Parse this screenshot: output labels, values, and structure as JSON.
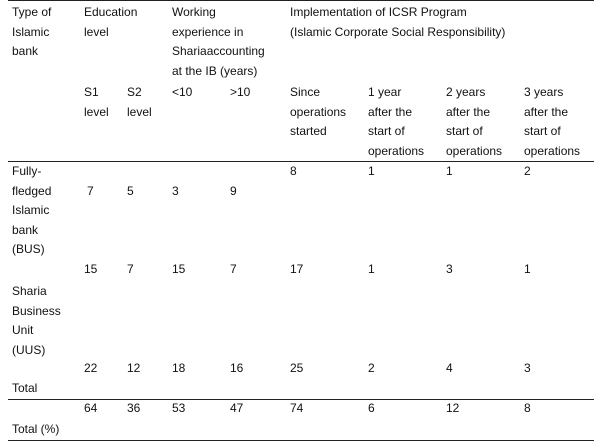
{
  "header": {
    "type_of_bank": [
      "Type of",
      "Islamic",
      "bank"
    ],
    "education_level": [
      "Education",
      "level"
    ],
    "working_experience": [
      "Working",
      "experience in",
      "Shariaaccounting",
      "at the IB (years)"
    ],
    "implementation": [
      "Implementation of ICSR Program",
      "(Islamic Corporate Social Responsibility)"
    ]
  },
  "subheader": {
    "s1": [
      "S1",
      "level"
    ],
    "s2": [
      "S2",
      "level"
    ],
    "lt10": [
      "<10"
    ],
    "gt10": [
      ">10"
    ],
    "since": [
      "Since",
      "operations",
      "started"
    ],
    "y1": [
      "1 year",
      "after the",
      "start of",
      "operations"
    ],
    "y2": [
      "2 years",
      "after the",
      "start of",
      "operations"
    ],
    "y3": [
      "3 years",
      "after the",
      "start of",
      "operations"
    ]
  },
  "rows": [
    {
      "label": [
        "Fully-",
        "fledged",
        "Islamic",
        "bank",
        "(BUS)"
      ],
      "s1": "7",
      "s2": "5",
      "lt10": "3",
      "gt10": "9",
      "since": "8",
      "y1": "1",
      "y2": "1",
      "y3": "2"
    },
    {
      "label": [
        "Sharia",
        "Business",
        "Unit",
        "(UUS)"
      ],
      "s1": "15",
      "s2": "7",
      "lt10": "15",
      "gt10": "7",
      "since": "17",
      "y1": "1",
      "y2": "3",
      "y3": "1"
    },
    {
      "label": [
        "Total"
      ],
      "s1": "22",
      "s2": "12",
      "lt10": "18",
      "gt10": "16",
      "since": "25",
      "y1": "2",
      "y2": "4",
      "y3": "3"
    },
    {
      "label": [
        "Total (%)"
      ],
      "s1": "64",
      "s2": "36",
      "lt10": "53",
      "gt10": "47",
      "since": "74",
      "y1": "6",
      "y2": "12",
      "y3": "8"
    }
  ]
}
